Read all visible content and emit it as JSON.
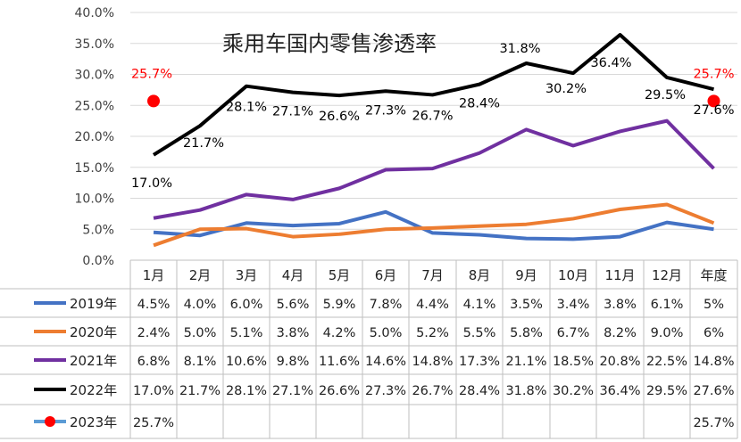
{
  "chart_data": {
    "type": "line",
    "title": "乘用车国内零售渗透率",
    "categories": [
      "1月",
      "2月",
      "3月",
      "4月",
      "5月",
      "6月",
      "7月",
      "8月",
      "9月",
      "10月",
      "11月",
      "12月",
      "年度"
    ],
    "y_ticks": [
      "0.0%",
      "5.0%",
      "10.0%",
      "15.0%",
      "20.0%",
      "25.0%",
      "30.0%",
      "35.0%",
      "40.0%"
    ],
    "ylim": [
      0,
      40
    ],
    "grid": true,
    "legend": "data-table",
    "series": [
      {
        "name": "2019年",
        "color": "#4472C4",
        "values": [
          4.5,
          4.0,
          6.0,
          5.6,
          5.9,
          7.8,
          4.4,
          4.1,
          3.5,
          3.4,
          3.8,
          6.1,
          5.0
        ],
        "table": [
          "4.5%",
          "4.0%",
          "6.0%",
          "5.6%",
          "5.9%",
          "7.8%",
          "4.4%",
          "4.1%",
          "3.5%",
          "3.4%",
          "3.8%",
          "6.1%",
          "5%"
        ]
      },
      {
        "name": "2020年",
        "color": "#ED7D31",
        "values": [
          2.4,
          5.0,
          5.1,
          3.8,
          4.2,
          5.0,
          5.2,
          5.5,
          5.8,
          6.7,
          8.2,
          9.0,
          6.0
        ],
        "table": [
          "2.4%",
          "5.0%",
          "5.1%",
          "3.8%",
          "4.2%",
          "5.0%",
          "5.2%",
          "5.5%",
          "5.8%",
          "6.7%",
          "8.2%",
          "9.0%",
          "6%"
        ]
      },
      {
        "name": "2021年",
        "color": "#7030A0",
        "values": [
          6.8,
          8.1,
          10.6,
          9.8,
          11.6,
          14.6,
          14.8,
          17.3,
          21.1,
          18.5,
          20.8,
          22.5,
          14.8
        ],
        "table": [
          "6.8%",
          "8.1%",
          "10.6%",
          "9.8%",
          "11.6%",
          "14.6%",
          "14.8%",
          "17.3%",
          "21.1%",
          "18.5%",
          "20.8%",
          "22.5%",
          "14.8%"
        ]
      },
      {
        "name": "2022年",
        "color": "#000000",
        "values": [
          17.0,
          21.7,
          28.1,
          27.1,
          26.6,
          27.3,
          26.7,
          28.4,
          31.8,
          30.2,
          36.4,
          29.5,
          27.6
        ],
        "table": [
          "17.0%",
          "21.7%",
          "28.1%",
          "27.1%",
          "26.6%",
          "27.3%",
          "26.7%",
          "28.4%",
          "31.8%",
          "30.2%",
          "36.4%",
          "29.5%",
          "27.6%"
        ],
        "labels": [
          "17.0%",
          "21.7%",
          "28.1%",
          "27.1%",
          "26.6%",
          "27.3%",
          "26.7%",
          "28.4%",
          "31.8%",
          "30.2%",
          "36.4%",
          "29.5%",
          "27.6%"
        ]
      },
      {
        "name": "2023年",
        "color": "#FF0000",
        "line_color": "#5B9BD5",
        "marker": "circle",
        "values": [
          25.7,
          null,
          null,
          null,
          null,
          null,
          null,
          null,
          null,
          null,
          null,
          null,
          25.7
        ],
        "table": [
          "25.7%",
          "",
          "",
          "",
          "",
          "",
          "",
          "",
          "",
          "",
          "",
          "",
          "25.7%"
        ],
        "labels": [
          "25.7%",
          "",
          "",
          "",
          "",
          "",
          "",
          "",
          "",
          "",
          "",
          "",
          "25.7%"
        ]
      }
    ]
  }
}
